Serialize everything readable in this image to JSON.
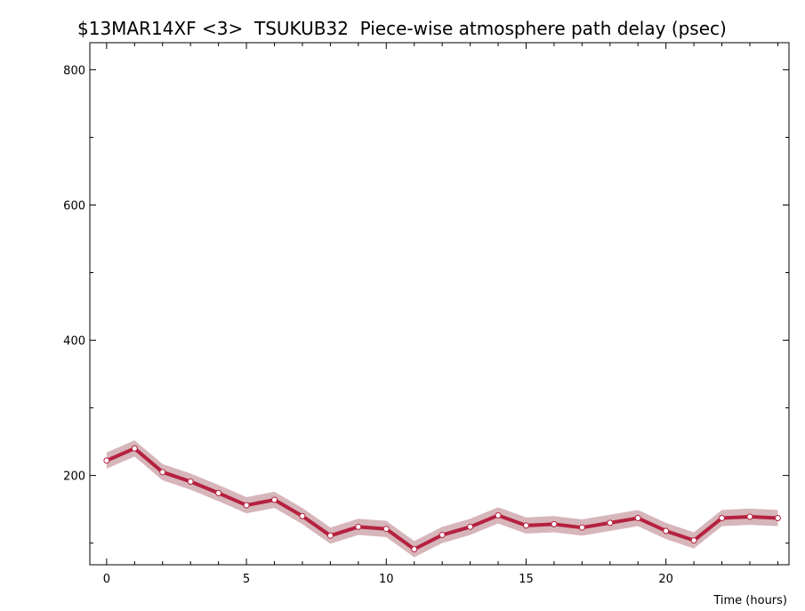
{
  "chart_data": {
    "type": "line",
    "title": "$13MAR14XF <3>  TSUKUB32  Piece-wise atmosphere path delay (psec)",
    "xlabel": "Time (hours)",
    "ylabel": "",
    "xlim": [
      -0.6,
      24.4
    ],
    "ylim": [
      68,
      840
    ],
    "x_ticks": [
      0,
      5,
      10,
      15,
      20
    ],
    "x_tick_labels": [
      "0",
      "5",
      "10",
      "15",
      "20"
    ],
    "y_ticks": [
      200,
      400,
      600,
      800
    ],
    "y_tick_labels": [
      "200",
      "400",
      "600",
      "800"
    ],
    "grid": false,
    "series": [
      {
        "x": [
          0,
          1,
          2,
          3,
          4,
          5,
          6,
          7,
          8,
          9,
          10,
          11,
          12,
          13,
          14,
          15,
          16,
          17,
          18,
          19,
          20,
          21,
          22,
          23,
          24
        ],
        "values": [
          222,
          240,
          205,
          191,
          174,
          156,
          164,
          140,
          111,
          124,
          121,
          91,
          112,
          124,
          141,
          126,
          128,
          123,
          130,
          137,
          118,
          104,
          137,
          139,
          137
        ],
        "error": [
          12,
          12,
          12,
          12,
          12,
          12,
          12,
          12,
          12,
          12,
          12,
          12,
          12,
          12,
          12,
          12,
          12,
          12,
          12,
          12,
          12,
          12,
          12,
          12,
          12
        ]
      }
    ],
    "colors": {
      "line": "#b5213f",
      "band": "#d6b6ba",
      "marker_fill": "#ffffff",
      "marker_stroke": "#b5213f",
      "axis": "#000000"
    }
  }
}
